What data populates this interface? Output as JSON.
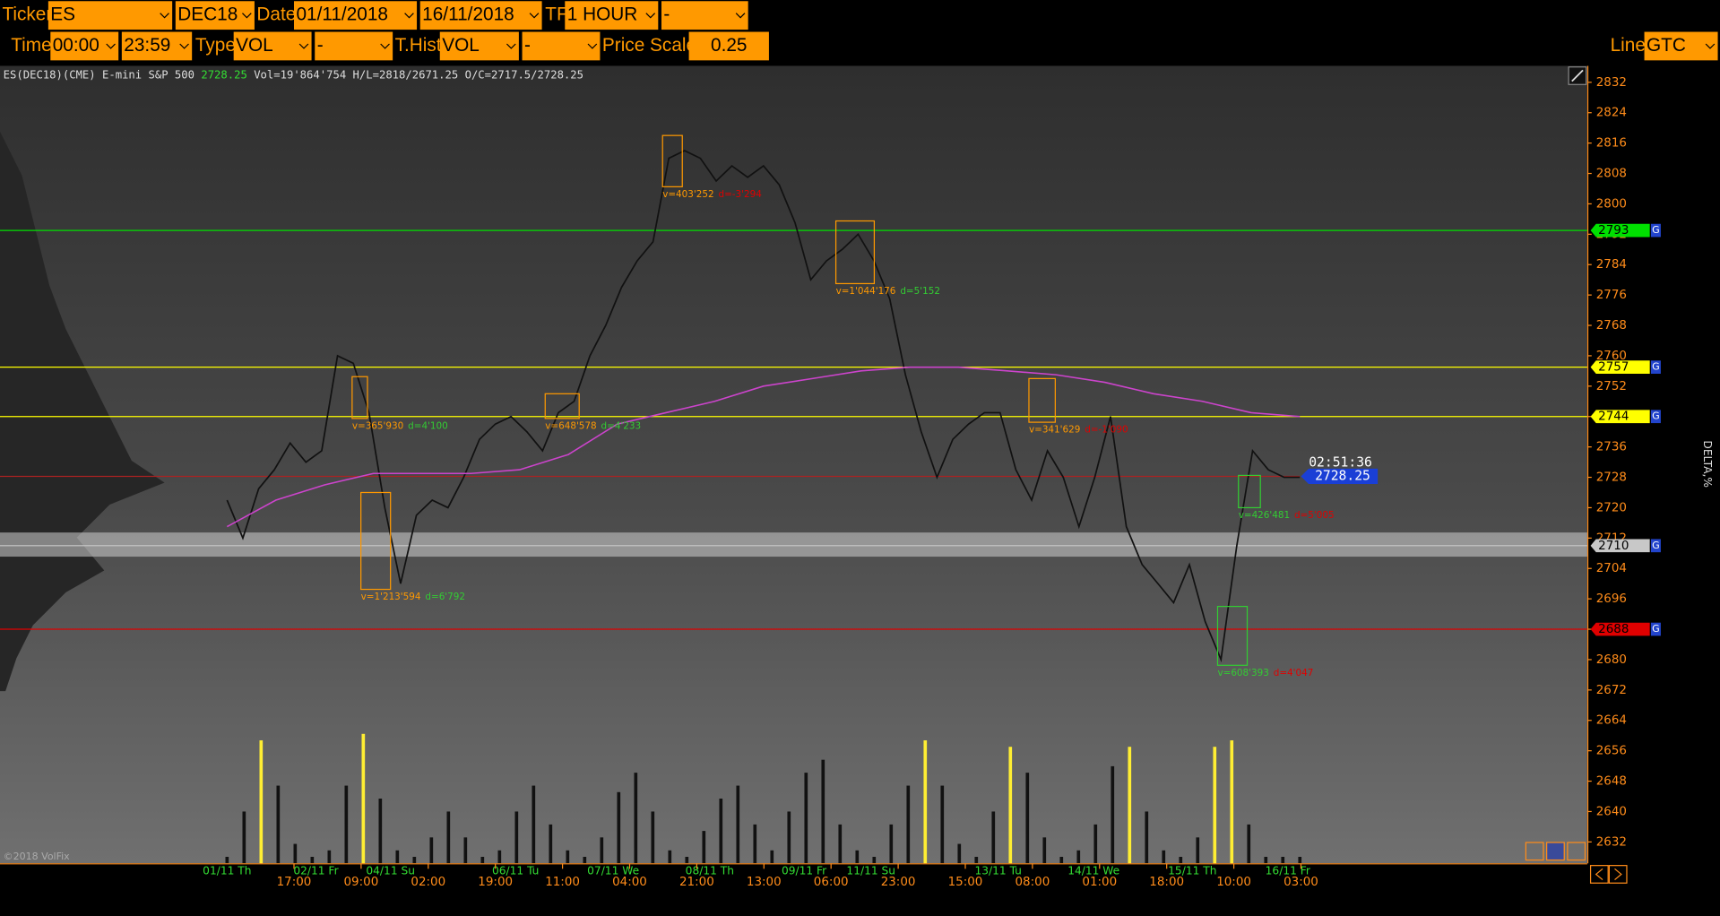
{
  "toolbar": {
    "labels": [
      "Ticker",
      "Date",
      "TF",
      "Time",
      "Type",
      "T.Hist",
      "Price Scale",
      "Line"
    ],
    "fields": [
      "ES",
      "DEC18",
      "01/11/2018",
      "16/11/2018",
      "1 HOUR",
      "-",
      "00:00",
      "23:59",
      "VOL",
      "-",
      "VOL",
      "-",
      "0.25",
      "GTC"
    ]
  },
  "header": {
    "instrument": "ES(DEC18)(CME) E-mini S&P 500",
    "last": 2728.25,
    "stats": "Vol=19'864'754 H/L=2818/2671.25 O/C=2717.5/2728.25"
  },
  "copyright": "©2018 VolFix",
  "side_label": "DELTA,%",
  "clock": "02:51:36",
  "chart_data": {
    "type": "line",
    "ylim": [
      2624,
      2836
    ],
    "yticks": [
      2832,
      2824,
      2816,
      2808,
      2800,
      2792,
      2784,
      2776,
      2768,
      2760,
      2752,
      2744,
      2736,
      2728,
      2720,
      2712,
      2704,
      2696,
      2688,
      2680,
      2672,
      2664,
      2656,
      2648,
      2640,
      2632
    ],
    "date_labels": [
      "01/11 Th",
      "02/11 Fr",
      "04/11 Su",
      "06/11 Tu",
      "07/11 We",
      "08/11 Th",
      "09/11 Fr",
      "11/11 Su",
      "13/11 Tu",
      "14/11 We",
      "15/11 Th",
      "16/11 Fr"
    ],
    "time_labels": [
      "17:00",
      "09:00",
      "02:00",
      "19:00",
      "11:00",
      "04:00",
      "21:00",
      "13:00",
      "06:00",
      "23:00",
      "15:00",
      "08:00",
      "01:00",
      "18:00",
      "10:00",
      "03:00"
    ],
    "price": [
      2722,
      2712,
      2725,
      2730,
      2737,
      2732,
      2735,
      2760,
      2758,
      2745,
      2720,
      2700,
      2718,
      2722,
      2720,
      2728,
      2738,
      2742,
      2744,
      2740,
      2735,
      2745,
      2748,
      2760,
      2768,
      2778,
      2785,
      2790,
      2812,
      2814,
      2812,
      2806,
      2810,
      2807,
      2810,
      2805,
      2795,
      2780,
      2785,
      2788,
      2792,
      2785,
      2775,
      2755,
      2740,
      2728,
      2738,
      2742,
      2745,
      2745,
      2730,
      2722,
      2735,
      2728,
      2715,
      2728,
      2744,
      2715,
      2705,
      2700,
      2695,
      2705,
      2690,
      2680,
      2710,
      2735,
      2730,
      2728,
      2728
    ],
    "vwap": [
      2715,
      2722,
      2726,
      2729,
      2729,
      2729,
      2730,
      2734,
      2742,
      2745,
      2748,
      2752,
      2754,
      2756,
      2757,
      2757,
      2756,
      2755,
      2753,
      2750,
      2748,
      2745,
      2744
    ],
    "volume": [
      5,
      40,
      95,
      60,
      15,
      5,
      10,
      60,
      100,
      50,
      10,
      5,
      20,
      40,
      20,
      5,
      10,
      40,
      60,
      30,
      10,
      5,
      20,
      55,
      70,
      40,
      10,
      5,
      25,
      50,
      60,
      30,
      10,
      40,
      70,
      80,
      30,
      10,
      5,
      30,
      60,
      95,
      60,
      15,
      5,
      40,
      90,
      70,
      20,
      5,
      10,
      30,
      75,
      90,
      40,
      10,
      5,
      20,
      90,
      95,
      30,
      5,
      5,
      5
    ],
    "levels": [
      {
        "price": 2793,
        "color": "#00e000"
      },
      {
        "price": 2757,
        "color": "#ffff00"
      },
      {
        "price": 2744,
        "color": "#ffff00"
      },
      {
        "price": 2710,
        "color": "#c8c8c8"
      },
      {
        "price": 2688,
        "color": "#e00000"
      }
    ],
    "level_flag": "G",
    "boxes": [
      {
        "top": 2818,
        "bottom": 2804.5,
        "color": "#ff9900",
        "v": "v=403'252",
        "d": "d=-3'294",
        "d_color": "#e00000"
      },
      {
        "top": 2795.5,
        "bottom": 2779,
        "color": "#ff9900",
        "v": "v=1'044'176",
        "d": "d=5'152",
        "d_color": "#33cc33"
      },
      {
        "top": 2754.5,
        "bottom": 2743.5,
        "color": "#ff9900",
        "v": "v=365'930",
        "d": "d=4'100",
        "d_color": "#33cc33"
      },
      {
        "top": 2750,
        "bottom": 2743.5,
        "color": "#ff9900",
        "v": "v=648'578",
        "d": "d=4'233",
        "d_color": "#33cc33"
      },
      {
        "top": 2754,
        "bottom": 2742.5,
        "color": "#ff9900",
        "v": "v=341'629",
        "d": "d=-1'090",
        "d_color": "#e00000"
      },
      {
        "top": 2724,
        "bottom": 2698.5,
        "color": "#ff9900",
        "v": "v=1'213'594",
        "d": "d=6'792",
        "d_color": "#33cc33"
      },
      {
        "top": 2728.5,
        "bottom": 2720,
        "color": "#33cc33",
        "v": "v=426'481",
        "d": "d=5'005",
        "d_color": "#e00000"
      },
      {
        "top": 2694,
        "bottom": 2678.5,
        "color": "#33cc33",
        "v": "v=608'393",
        "d": "d=4'047",
        "d_color": "#e00000"
      }
    ]
  }
}
